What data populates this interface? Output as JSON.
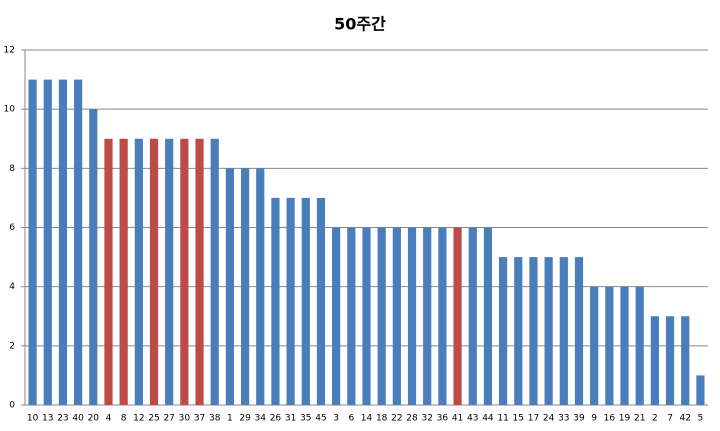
{
  "chart_data": {
    "type": "bar",
    "title": "50주간",
    "categories": [
      "10",
      "13",
      "23",
      "40",
      "20",
      "4",
      "8",
      "12",
      "25",
      "27",
      "30",
      "37",
      "38",
      "1",
      "29",
      "34",
      "26",
      "31",
      "35",
      "45",
      "3",
      "6",
      "14",
      "18",
      "22",
      "28",
      "32",
      "36",
      "41",
      "43",
      "44",
      "11",
      "15",
      "17",
      "24",
      "33",
      "39",
      "9",
      "16",
      "19",
      "21",
      "2",
      "7",
      "42",
      "5"
    ],
    "values": [
      11,
      11,
      11,
      11,
      10,
      9,
      9,
      9,
      9,
      9,
      9,
      9,
      9,
      8,
      8,
      8,
      7,
      7,
      7,
      7,
      6,
      6,
      6,
      6,
      6,
      6,
      6,
      6,
      6,
      6,
      6,
      5,
      5,
      5,
      5,
      5,
      5,
      4,
      4,
      4,
      4,
      3,
      3,
      3,
      1
    ],
    "colors": [
      "#4a7ebb",
      "#4a7ebb",
      "#4a7ebb",
      "#4a7ebb",
      "#4a7ebb",
      "#be4b48",
      "#be4b48",
      "#4a7ebb",
      "#be4b48",
      "#4a7ebb",
      "#be4b48",
      "#be4b48",
      "#4a7ebb",
      "#4a7ebb",
      "#4a7ebb",
      "#4a7ebb",
      "#4a7ebb",
      "#4a7ebb",
      "#4a7ebb",
      "#4a7ebb",
      "#4a7ebb",
      "#4a7ebb",
      "#4a7ebb",
      "#4a7ebb",
      "#4a7ebb",
      "#4a7ebb",
      "#4a7ebb",
      "#4a7ebb",
      "#be4b48",
      "#4a7ebb",
      "#4a7ebb",
      "#4a7ebb",
      "#4a7ebb",
      "#4a7ebb",
      "#4a7ebb",
      "#4a7ebb",
      "#4a7ebb",
      "#4a7ebb",
      "#4a7ebb",
      "#4a7ebb",
      "#4a7ebb",
      "#4a7ebb",
      "#4a7ebb",
      "#4a7ebb",
      "#4a7ebb"
    ],
    "ylim": [
      0,
      12
    ],
    "yticks": [
      0,
      2,
      4,
      6,
      8,
      10,
      12
    ],
    "grid": true
  }
}
